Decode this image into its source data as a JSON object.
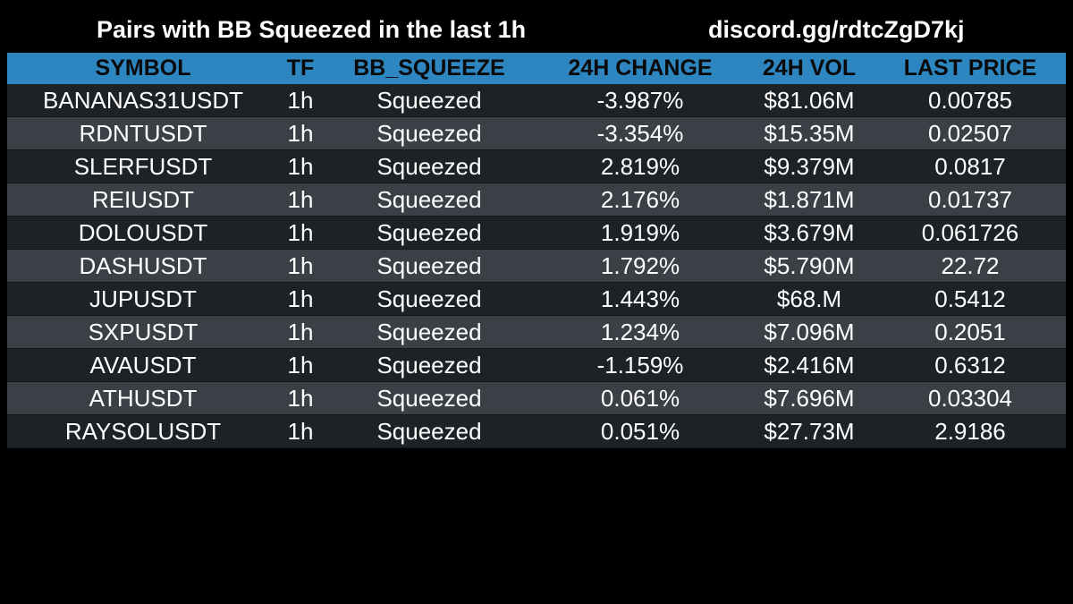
{
  "header": {
    "title": "Pairs with BB Squeezed in the last 1h",
    "discord_link": "discord.gg/rdtcZgD7kj"
  },
  "table": {
    "columns": [
      "SYMBOL",
      "TF",
      "BB_SQUEEZE",
      "24H CHANGE",
      "24H VOL",
      "LAST PRICE"
    ],
    "rows": [
      [
        "BANANAS31USDT",
        "1h",
        "Squeezed",
        "-3.987%",
        "$81.06M",
        "0.00785"
      ],
      [
        "RDNTUSDT",
        "1h",
        "Squeezed",
        "-3.354%",
        "$15.35M",
        "0.02507"
      ],
      [
        "SLERFUSDT",
        "1h",
        "Squeezed",
        "2.819%",
        "$9.379M",
        "0.0817"
      ],
      [
        "REIUSDT",
        "1h",
        "Squeezed",
        "2.176%",
        "$1.871M",
        "0.01737"
      ],
      [
        "DOLOUSDT",
        "1h",
        "Squeezed",
        "1.919%",
        "$3.679M",
        "0.061726"
      ],
      [
        "DASHUSDT",
        "1h",
        "Squeezed",
        "1.792%",
        "$5.790M",
        "22.72"
      ],
      [
        "JUPUSDT",
        "1h",
        "Squeezed",
        "1.443%",
        "$68.M",
        "0.5412"
      ],
      [
        "SXPUSDT",
        "1h",
        "Squeezed",
        "1.234%",
        "$7.096M",
        "0.2051"
      ],
      [
        "AVAUSDT",
        "1h",
        "Squeezed",
        "-1.159%",
        "$2.416M",
        "0.6312"
      ],
      [
        "ATHUSDT",
        "1h",
        "Squeezed",
        "0.061%",
        "$7.696M",
        "0.03304"
      ],
      [
        "RAYSOLUSDT",
        "1h",
        "Squeezed",
        "0.051%",
        "$27.73M",
        "2.9186"
      ]
    ]
  },
  "colors": {
    "background": "#000000",
    "header_row": "#2e86c1",
    "row_dark": "#1d2226",
    "row_light": "#3a4046",
    "text": "#ffffff"
  }
}
